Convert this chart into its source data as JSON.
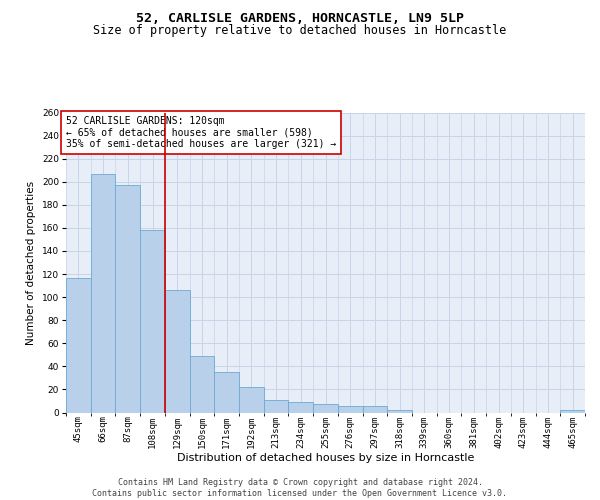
{
  "title": "52, CARLISLE GARDENS, HORNCASTLE, LN9 5LP",
  "subtitle": "Size of property relative to detached houses in Horncastle",
  "xlabel": "Distribution of detached houses by size in Horncastle",
  "ylabel": "Number of detached properties",
  "categories": [
    "45sqm",
    "66sqm",
    "87sqm",
    "108sqm",
    "129sqm",
    "150sqm",
    "171sqm",
    "192sqm",
    "213sqm",
    "234sqm",
    "255sqm",
    "276sqm",
    "297sqm",
    "318sqm",
    "339sqm",
    "360sqm",
    "381sqm",
    "402sqm",
    "423sqm",
    "444sqm",
    "465sqm"
  ],
  "values": [
    117,
    207,
    197,
    158,
    106,
    49,
    35,
    22,
    11,
    9,
    7,
    6,
    6,
    2,
    0,
    0,
    0,
    0,
    0,
    0,
    2
  ],
  "bar_color": "#b8d0ea",
  "bar_edge_color": "#6aaad4",
  "grid_color": "#c8d4e8",
  "background_color": "#e8eef8",
  "vline_color": "#cc0000",
  "annotation_text": "52 CARLISLE GARDENS: 120sqm\n← 65% of detached houses are smaller (598)\n35% of semi-detached houses are larger (321) →",
  "annotation_box_color": "#ffffff",
  "annotation_box_edge_color": "#cc0000",
  "ylim": [
    0,
    260
  ],
  "yticks": [
    0,
    20,
    40,
    60,
    80,
    100,
    120,
    140,
    160,
    180,
    200,
    220,
    240,
    260
  ],
  "footer": "Contains HM Land Registry data © Crown copyright and database right 2024.\nContains public sector information licensed under the Open Government Licence v3.0.",
  "title_fontsize": 9.5,
  "subtitle_fontsize": 8.5,
  "xlabel_fontsize": 8,
  "ylabel_fontsize": 7.5,
  "tick_fontsize": 6.5,
  "annotation_fontsize": 7,
  "footer_fontsize": 6
}
